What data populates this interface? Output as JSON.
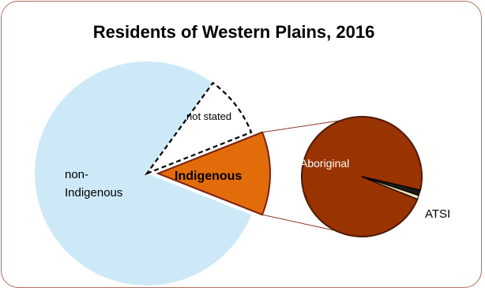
{
  "chart_data": {
    "type": "pie",
    "title": "Residents of Western Plains, 2016",
    "main_pie": {
      "slices": [
        {
          "label": "non-\nIndigenous",
          "value": 79,
          "color": "#cde9f8"
        },
        {
          "label": "not stated",
          "value": 9,
          "color": "#ffffff",
          "style": "dashed"
        },
        {
          "label": "Indigenous",
          "value": 12,
          "color": "#e36c0a",
          "exploded": true
        }
      ]
    },
    "sub_pie": {
      "parent": "Indigenous",
      "slices": [
        {
          "label": "Aboriginal",
          "value": 97.5,
          "color": "#993300"
        },
        {
          "label": "",
          "value": 1.5,
          "color": "#1a1a1a"
        },
        {
          "label": "ATSI",
          "value": 1.0,
          "color": "#f5deb3"
        }
      ]
    }
  },
  "text": {
    "title": "Residents of Western Plains, 2016",
    "non_indigenous_line1": "non-",
    "non_indigenous_line2": "Indigenous",
    "not_stated": "not stated",
    "indigenous": "Indigenous",
    "aboriginal": "Aboriginal",
    "atsi": "ATSI"
  }
}
